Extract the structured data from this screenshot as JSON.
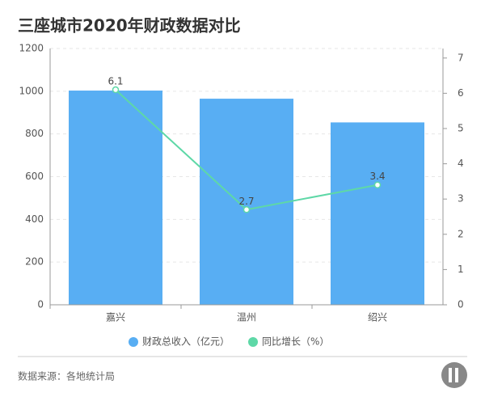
{
  "chart_data": {
    "type": "bar",
    "title": "三座城市2020年财政数据对比",
    "categories": [
      "嘉兴",
      "温州",
      "绍兴"
    ],
    "series": [
      {
        "name": "财政总收入（亿元）",
        "color": "#58aef3",
        "values": [
          1003,
          965,
          854
        ]
      },
      {
        "name": "同比增长（%）",
        "type": "line",
        "axis": "y2",
        "color": "#5ed8a7",
        "values": [
          6.1,
          2.7,
          3.4
        ]
      }
    ],
    "ylim": [
      0,
      1200
    ],
    "yticks": [
      0,
      200,
      400,
      600,
      800,
      1000,
      1200
    ],
    "y2lim": [
      0,
      7.27
    ],
    "y2ticks": [
      0,
      1,
      2,
      3,
      4,
      5,
      6,
      7
    ],
    "grid": true,
    "legend": "bottom",
    "source": "数据来源：各地统计局"
  }
}
